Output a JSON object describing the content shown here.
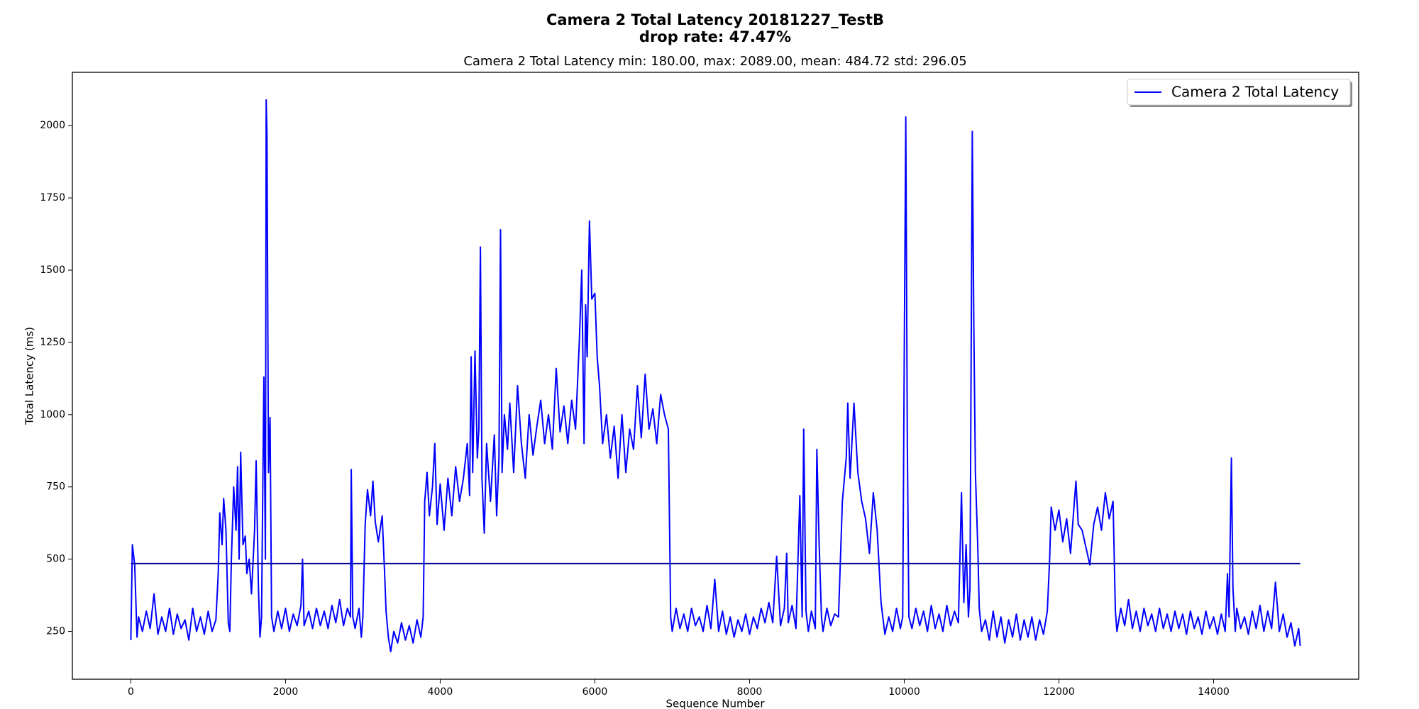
{
  "chart_data": {
    "type": "line",
    "title": "Camera 2 Total Latency 20181227_TestB",
    "title_line2": "drop rate: 47.47%",
    "subtitle": "Camera 2 Total Latency min: 180.00, max: 2089.00, mean: 484.72 std: 296.05",
    "x_label": "Sequence Number",
    "y_label": "Total Latency (ms)",
    "xlim": [
      -756,
      15876
    ],
    "ylim": [
      84.55,
      2184.45
    ],
    "xticks": [
      0,
      2000,
      4000,
      6000,
      8000,
      10000,
      12000,
      14000
    ],
    "yticks": [
      250,
      500,
      750,
      1000,
      1250,
      1500,
      1750,
      2000
    ],
    "legend": "upper right",
    "mean": 484.72,
    "mean_color": "#00009c",
    "x": [
      0,
      20,
      50,
      80,
      100,
      150,
      200,
      250,
      300,
      350,
      400,
      450,
      500,
      550,
      600,
      650,
      700,
      750,
      800,
      850,
      900,
      950,
      1000,
      1050,
      1100,
      1130,
      1150,
      1180,
      1200,
      1230,
      1260,
      1280,
      1300,
      1330,
      1360,
      1380,
      1400,
      1420,
      1450,
      1480,
      1500,
      1530,
      1560,
      1600,
      1620,
      1650,
      1670,
      1690,
      1720,
      1740,
      1750,
      1760,
      1780,
      1800,
      1820,
      1850,
      1900,
      1950,
      2000,
      2050,
      2100,
      2150,
      2200,
      2220,
      2240,
      2300,
      2350,
      2400,
      2450,
      2500,
      2550,
      2600,
      2650,
      2700,
      2750,
      2800,
      2840,
      2850,
      2870,
      2900,
      2950,
      2980,
      3000,
      3030,
      3060,
      3100,
      3130,
      3160,
      3200,
      3250,
      3280,
      3300,
      3330,
      3360,
      3400,
      3450,
      3500,
      3550,
      3600,
      3650,
      3700,
      3750,
      3780,
      3800,
      3830,
      3860,
      3900,
      3930,
      3960,
      4000,
      4050,
      4100,
      4150,
      4200,
      4250,
      4300,
      4350,
      4380,
      4400,
      4420,
      4450,
      4480,
      4500,
      4520,
      4540,
      4570,
      4600,
      4650,
      4700,
      4730,
      4760,
      4780,
      4800,
      4830,
      4870,
      4900,
      4950,
      5000,
      5050,
      5100,
      5150,
      5200,
      5250,
      5300,
      5350,
      5400,
      5450,
      5500,
      5550,
      5600,
      5650,
      5700,
      5750,
      5800,
      5830,
      5860,
      5880,
      5900,
      5930,
      5960,
      6000,
      6030,
      6060,
      6100,
      6150,
      6200,
      6250,
      6300,
      6350,
      6400,
      6450,
      6500,
      6550,
      6600,
      6650,
      6700,
      6750,
      6800,
      6850,
      6900,
      6950,
      6980,
      7000,
      7050,
      7100,
      7150,
      7200,
      7250,
      7300,
      7350,
      7400,
      7450,
      7500,
      7550,
      7600,
      7650,
      7700,
      7750,
      7800,
      7850,
      7900,
      7950,
      8000,
      8050,
      8100,
      8150,
      8200,
      8250,
      8300,
      8350,
      8400,
      8450,
      8480,
      8500,
      8550,
      8600,
      8650,
      8680,
      8700,
      8730,
      8760,
      8800,
      8850,
      8870,
      8900,
      8930,
      8950,
      9000,
      9050,
      9100,
      9150,
      9200,
      9250,
      9270,
      9300,
      9350,
      9400,
      9450,
      9500,
      9550,
      9600,
      9650,
      9700,
      9750,
      9800,
      9850,
      9900,
      9950,
      9980,
      10000,
      10020,
      10040,
      10060,
      10100,
      10150,
      10200,
      10250,
      10300,
      10350,
      10400,
      10450,
      10500,
      10550,
      10600,
      10650,
      10700,
      10740,
      10770,
      10800,
      10830,
      10850,
      10880,
      10900,
      10920,
      10950,
      10970,
      11000,
      11050,
      11100,
      11150,
      11200,
      11250,
      11300,
      11350,
      11400,
      11450,
      11500,
      11550,
      11600,
      11650,
      11700,
      11750,
      11800,
      11850,
      11880,
      11900,
      11950,
      12000,
      12050,
      12100,
      12150,
      12200,
      12220,
      12250,
      12300,
      12350,
      12400,
      12450,
      12500,
      12550,
      12600,
      12650,
      12700,
      12730,
      12750,
      12800,
      12850,
      12900,
      12950,
      13000,
      13050,
      13100,
      13150,
      13200,
      13250,
      13300,
      13350,
      13400,
      13450,
      13500,
      13550,
      13600,
      13650,
      13700,
      13750,
      13800,
      13850,
      13900,
      13950,
      14000,
      14050,
      14100,
      14150,
      14180,
      14200,
      14230,
      14250,
      14280,
      14300,
      14350,
      14400,
      14450,
      14500,
      14550,
      14600,
      14650,
      14700,
      14750,
      14800,
      14850,
      14900,
      14950,
      15000,
      15050,
      15100,
      15120
    ],
    "series": [
      {
        "name": "Camera 2 Total Latency",
        "color": "#0000ff",
        "values": [
          220,
          550,
          480,
          230,
          300,
          250,
          320,
          260,
          380,
          240,
          300,
          250,
          330,
          240,
          310,
          260,
          290,
          220,
          330,
          250,
          300,
          240,
          320,
          250,
          290,
          450,
          660,
          550,
          710,
          600,
          280,
          250,
          500,
          750,
          600,
          820,
          500,
          870,
          550,
          580,
          450,
          500,
          380,
          600,
          840,
          400,
          230,
          300,
          1130,
          500,
          2089,
          1970,
          800,
          990,
          300,
          250,
          320,
          260,
          330,
          250,
          310,
          270,
          340,
          500,
          270,
          320,
          260,
          330,
          270,
          320,
          260,
          340,
          280,
          360,
          270,
          330,
          300,
          810,
          300,
          260,
          330,
          230,
          300,
          620,
          740,
          650,
          770,
          630,
          560,
          650,
          460,
          320,
          230,
          180,
          250,
          210,
          280,
          220,
          270,
          210,
          290,
          230,
          300,
          700,
          800,
          650,
          750,
          900,
          620,
          760,
          600,
          780,
          650,
          820,
          700,
          780,
          900,
          720,
          1200,
          800,
          1220,
          850,
          950,
          1580,
          780,
          590,
          900,
          700,
          930,
          650,
          850,
          1640,
          800,
          1000,
          880,
          1040,
          800,
          1100,
          900,
          780,
          1000,
          860,
          960,
          1050,
          900,
          1000,
          880,
          1160,
          940,
          1030,
          900,
          1050,
          950,
          1260,
          1500,
          900,
          1380,
          1200,
          1670,
          1400,
          1420,
          1200,
          1100,
          900,
          1000,
          850,
          960,
          780,
          1000,
          800,
          950,
          880,
          1100,
          920,
          1140,
          950,
          1020,
          900,
          1070,
          1000,
          950,
          300,
          250,
          330,
          260,
          310,
          250,
          330,
          270,
          300,
          250,
          340,
          260,
          430,
          250,
          320,
          240,
          300,
          230,
          290,
          250,
          310,
          240,
          300,
          260,
          330,
          280,
          350,
          280,
          510,
          270,
          330,
          520,
          280,
          340,
          260,
          720,
          300,
          950,
          320,
          250,
          320,
          260,
          880,
          550,
          300,
          250,
          330,
          270,
          310,
          300,
          700,
          850,
          1040,
          780,
          1040,
          800,
          700,
          640,
          520,
          730,
          600,
          350,
          240,
          300,
          250,
          330,
          260,
          300,
          1200,
          2030,
          900,
          300,
          260,
          330,
          270,
          320,
          250,
          340,
          260,
          310,
          250,
          340,
          270,
          320,
          280,
          730,
          350,
          550,
          300,
          400,
          1980,
          1300,
          800,
          550,
          330,
          250,
          290,
          220,
          320,
          230,
          300,
          210,
          290,
          230,
          310,
          220,
          290,
          230,
          300,
          220,
          290,
          240,
          320,
          500,
          680,
          600,
          670,
          560,
          640,
          520,
          700,
          770,
          620,
          600,
          540,
          480,
          620,
          680,
          600,
          730,
          640,
          700,
          320,
          250,
          330,
          270,
          360,
          260,
          320,
          250,
          330,
          270,
          310,
          250,
          330,
          260,
          310,
          250,
          320,
          260,
          310,
          240,
          320,
          260,
          300,
          240,
          320,
          260,
          300,
          240,
          310,
          250,
          450,
          300,
          850,
          400,
          250,
          330,
          260,
          300,
          240,
          320,
          260,
          340,
          250,
          320,
          260,
          420,
          250,
          310,
          230,
          280,
          200,
          260,
          200
        ]
      }
    ]
  }
}
